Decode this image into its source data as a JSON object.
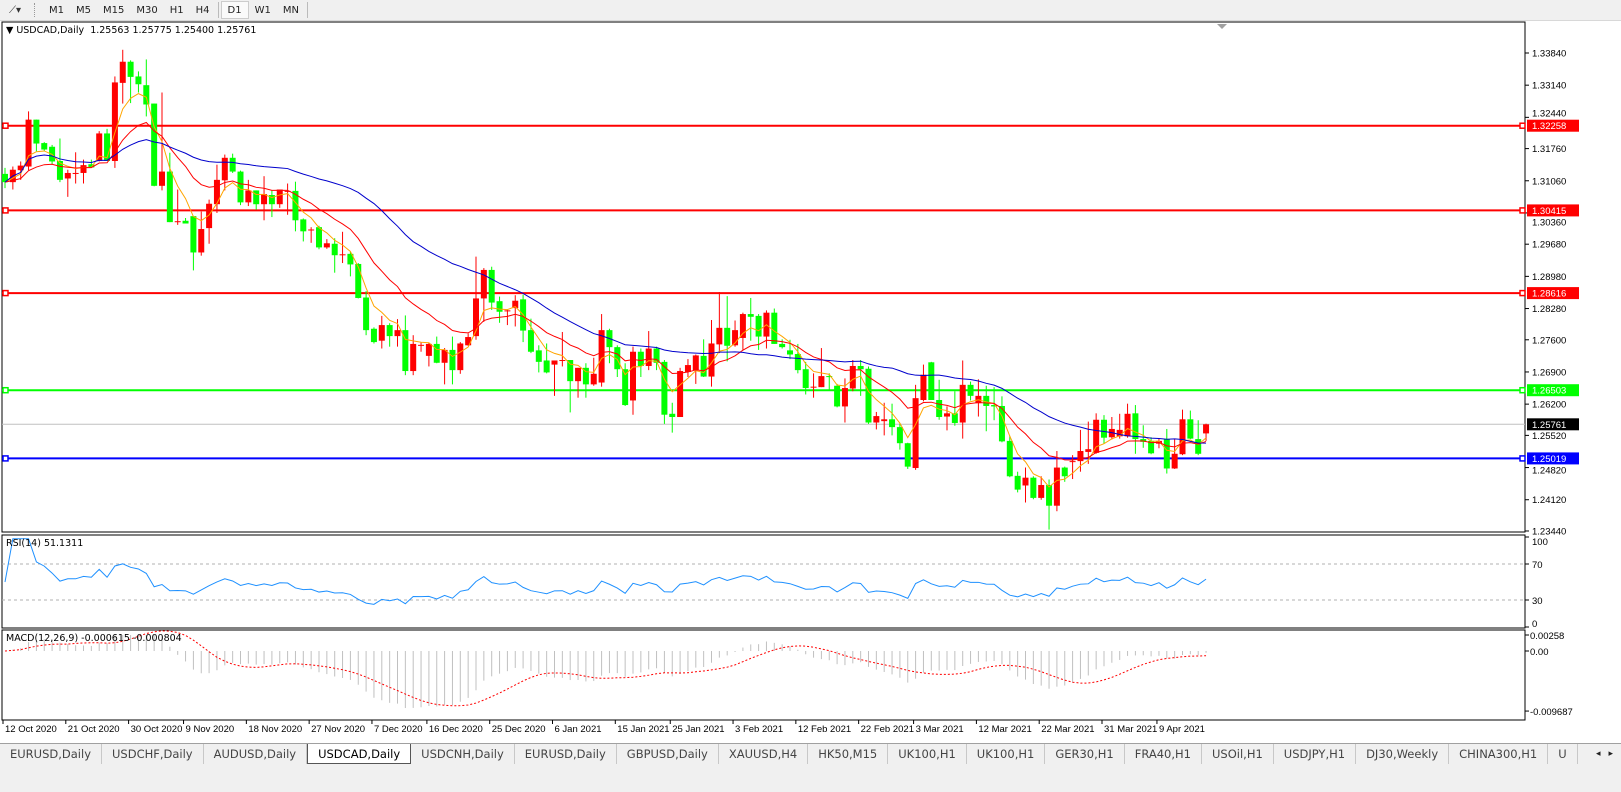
{
  "toolbar": {
    "tools_icon": "line-tools-icon",
    "dropdown_icon": "chevron-down-icon",
    "timeframes": [
      "M1",
      "M5",
      "M15",
      "M30",
      "H1",
      "H4",
      "D1",
      "W1",
      "MN"
    ],
    "active_timeframe": "D1"
  },
  "chart_data": [
    {
      "type": "candlestick",
      "title": "USDCAD,Daily",
      "ohlc_readout": "1.25563 1.25775 1.25400 1.25761",
      "bull_color": "#ff0000",
      "bear_color": "#00ff00",
      "moving_average_colors": [
        "#ffa500",
        "#ff0000",
        "#0000cc"
      ],
      "x_tick_labels": [
        "12 Oct 2020",
        "21 Oct 2020",
        "30 Oct 2020",
        "9 Nov 2020",
        "18 Nov 2020",
        "27 Nov 2020",
        "7 Dec 2020",
        "16 Dec 2020",
        "25 Dec 2020",
        "6 Jan 2021",
        "15 Jan 2021",
        "25 Jan 2021",
        "3 Feb 2021",
        "12 Feb 2021",
        "22 Feb 2021",
        "3 Mar 2021",
        "12 Mar 2021",
        "22 Mar 2021",
        "31 Mar 2021",
        "9 Apr 2021"
      ],
      "y_tick_labels": [
        "1.33840",
        "1.33140",
        "1.32440",
        "1.31760",
        "1.31060",
        "1.30360",
        "1.29680",
        "1.28980",
        "1.28280",
        "1.27600",
        "1.26900",
        "1.26200",
        "1.25520",
        "1.24820",
        "1.24120",
        "1.23440"
      ],
      "ylim": [
        1.2344,
        1.3384
      ],
      "horizontal_lines": [
        {
          "label": "1.32258",
          "color": "#ff0000"
        },
        {
          "label": "1.30415",
          "color": "#ff0000"
        },
        {
          "label": "1.28616",
          "color": "#ff0000"
        },
        {
          "label": "1.26503",
          "color": "#00ff00"
        },
        {
          "label": "1.25019",
          "color": "#0000ff"
        }
      ],
      "current_price": {
        "label": "1.25761",
        "line_color": "#c0c0c0",
        "label_bg": "#000000"
      },
      "candles_ohlc": [
        [
          1.3121,
          1.3134,
          1.309,
          1.3103
        ],
        [
          1.3103,
          1.3137,
          1.3087,
          1.313
        ],
        [
          1.3129,
          1.3148,
          1.3108,
          1.3139
        ],
        [
          1.3137,
          1.3257,
          1.3129,
          1.3239
        ],
        [
          1.3239,
          1.3239,
          1.317,
          1.3187
        ],
        [
          1.3188,
          1.319,
          1.317,
          1.3174
        ],
        [
          1.318,
          1.3184,
          1.3141,
          1.3148
        ],
        [
          1.3149,
          1.3198,
          1.3103,
          1.3108
        ],
        [
          1.3111,
          1.313,
          1.3071,
          1.3123
        ],
        [
          1.3122,
          1.3168,
          1.31,
          1.3123
        ],
        [
          1.3123,
          1.3152,
          1.31,
          1.314
        ],
        [
          1.3142,
          1.3152,
          1.3135,
          1.3135
        ],
        [
          1.3149,
          1.3214,
          1.3148,
          1.3209
        ],
        [
          1.3209,
          1.3219,
          1.3149,
          1.3149
        ],
        [
          1.3149,
          1.3333,
          1.3134,
          1.332
        ],
        [
          1.3319,
          1.3391,
          1.3274,
          1.3365
        ],
        [
          1.3365,
          1.3368,
          1.3275,
          1.3332
        ],
        [
          1.3333,
          1.3344,
          1.3298,
          1.3316
        ],
        [
          1.3314,
          1.337,
          1.3246,
          1.3272
        ],
        [
          1.3274,
          1.3274,
          1.3094,
          1.3095
        ],
        [
          1.3095,
          1.3298,
          1.3085,
          1.3126
        ],
        [
          1.3126,
          1.3167,
          1.3016,
          1.3016
        ],
        [
          1.3017,
          1.3087,
          1.301,
          1.3018
        ],
        [
          1.3019,
          1.3025,
          1.3013,
          1.3013
        ],
        [
          1.3029,
          1.3029,
          1.2911,
          1.295
        ],
        [
          1.295,
          1.3039,
          1.2943,
          1.3001
        ],
        [
          1.3003,
          1.3065,
          1.2969,
          1.3056
        ],
        [
          1.3055,
          1.3141,
          1.3036,
          1.3108
        ],
        [
          1.3107,
          1.3163,
          1.3085,
          1.3156
        ],
        [
          1.3156,
          1.3165,
          1.3123,
          1.3126
        ],
        [
          1.3126,
          1.3128,
          1.3053,
          1.3059
        ],
        [
          1.3059,
          1.3108,
          1.3051,
          1.3085
        ],
        [
          1.3085,
          1.3085,
          1.3043,
          1.3055
        ],
        [
          1.3055,
          1.3116,
          1.302,
          1.3077
        ],
        [
          1.3075,
          1.3085,
          1.3027,
          1.3055
        ],
        [
          1.3055,
          1.3087,
          1.3047,
          1.3087
        ],
        [
          1.3082,
          1.31,
          1.3032,
          1.3084
        ],
        [
          1.3084,
          1.3104,
          1.2996,
          1.302
        ],
        [
          1.3022,
          1.3024,
          1.2974,
          1.2996
        ],
        [
          1.2998,
          1.3005,
          1.2971,
          1.3
        ],
        [
          1.3005,
          1.3008,
          1.2957,
          1.2961
        ],
        [
          1.2961,
          1.2979,
          1.2958,
          1.297
        ],
        [
          1.2969,
          1.2981,
          1.2906,
          1.2944
        ],
        [
          1.2945,
          1.2995,
          1.2927,
          1.2946
        ],
        [
          1.2947,
          1.2951,
          1.2898,
          1.2924
        ],
        [
          1.2925,
          1.2927,
          1.285,
          1.2851
        ],
        [
          1.2852,
          1.2866,
          1.277,
          1.2781
        ],
        [
          1.2784,
          1.2787,
          1.2752,
          1.2755
        ],
        [
          1.2758,
          1.2812,
          1.2741,
          1.2792
        ],
        [
          1.2792,
          1.2796,
          1.2745,
          1.2768
        ],
        [
          1.2768,
          1.2805,
          1.2745,
          1.2781
        ],
        [
          1.2781,
          1.2813,
          1.2683,
          1.2692
        ],
        [
          1.2692,
          1.277,
          1.2683,
          1.2751
        ],
        [
          1.2749,
          1.2754,
          1.2734,
          1.2749
        ],
        [
          1.2725,
          1.2754,
          1.2702,
          1.2751
        ],
        [
          1.2751,
          1.2767,
          1.2709,
          1.271
        ],
        [
          1.271,
          1.2742,
          1.2663,
          1.2738
        ],
        [
          1.2738,
          1.2767,
          1.2663,
          1.2694
        ],
        [
          1.2694,
          1.2755,
          1.2686,
          1.2752
        ],
        [
          1.2748,
          1.2774,
          1.2747,
          1.2766
        ],
        [
          1.2768,
          1.2941,
          1.276,
          1.285
        ],
        [
          1.285,
          1.2916,
          1.2799,
          1.2912
        ],
        [
          1.2912,
          1.2919,
          1.2825,
          1.2841
        ],
        [
          1.2844,
          1.2854,
          1.2797,
          1.2821
        ],
        [
          1.2823,
          1.2826,
          1.2792,
          1.2824
        ],
        [
          1.2829,
          1.2857,
          1.2789,
          1.2845
        ],
        [
          1.2848,
          1.2858,
          1.2755,
          1.278
        ],
        [
          1.2781,
          1.2806,
          1.2731,
          1.2734
        ],
        [
          1.2737,
          1.2748,
          1.2689,
          1.2712
        ],
        [
          1.2715,
          1.2752,
          1.2687,
          1.2689
        ],
        [
          1.2706,
          1.2715,
          1.2638,
          1.2715
        ],
        [
          1.2715,
          1.2777,
          1.2702,
          1.2716
        ],
        [
          1.2716,
          1.2716,
          1.2602,
          1.267
        ],
        [
          1.267,
          1.2699,
          1.2634,
          1.2699
        ],
        [
          1.2699,
          1.2709,
          1.2634,
          1.2663
        ],
        [
          1.2663,
          1.2721,
          1.266,
          1.2686
        ],
        [
          1.2667,
          1.2816,
          1.2658,
          1.2781
        ],
        [
          1.2781,
          1.2784,
          1.2709,
          1.2744
        ],
        [
          1.2744,
          1.2748,
          1.2679,
          1.2696
        ],
        [
          1.2696,
          1.2709,
          1.2616,
          1.2618
        ],
        [
          1.2628,
          1.2745,
          1.2597,
          1.2734
        ],
        [
          1.2734,
          1.2741,
          1.2679,
          1.2703
        ],
        [
          1.2703,
          1.2779,
          1.2694,
          1.2741
        ],
        [
          1.2741,
          1.2745,
          1.2694,
          1.271
        ],
        [
          1.2712,
          1.2716,
          1.2577,
          1.2597
        ],
        [
          1.2599,
          1.2623,
          1.2558,
          1.2592
        ],
        [
          1.2592,
          1.2699,
          1.2592,
          1.2692
        ],
        [
          1.269,
          1.2718,
          1.2679,
          1.2705
        ],
        [
          1.2694,
          1.2728,
          1.2664,
          1.2726
        ],
        [
          1.2725,
          1.2761,
          1.2679,
          1.268
        ],
        [
          1.268,
          1.2803,
          1.2658,
          1.2752
        ],
        [
          1.275,
          1.2864,
          1.2731,
          1.2786
        ],
        [
          1.2786,
          1.2855,
          1.2713,
          1.2747
        ],
        [
          1.2748,
          1.2802,
          1.2745,
          1.2781
        ],
        [
          1.2764,
          1.2819,
          1.2738,
          1.2816
        ],
        [
          1.2816,
          1.2851,
          1.2758,
          1.281
        ],
        [
          1.2812,
          1.2816,
          1.2738,
          1.2767
        ],
        [
          1.2767,
          1.2824,
          1.2741,
          1.2819
        ],
        [
          1.2819,
          1.2828,
          1.2751,
          1.2751
        ],
        [
          1.2751,
          1.2761,
          1.2741,
          1.2744
        ],
        [
          1.2737,
          1.276,
          1.2718,
          1.2728
        ],
        [
          1.2729,
          1.2751,
          1.2687,
          1.2694
        ],
        [
          1.2696,
          1.2712,
          1.2641,
          1.2655
        ],
        [
          1.2657,
          1.2687,
          1.2634,
          1.2658
        ],
        [
          1.2657,
          1.2742,
          1.2657,
          1.2681
        ],
        [
          1.2681,
          1.2687,
          1.2651,
          1.2679
        ],
        [
          1.266,
          1.2664,
          1.2613,
          1.2615
        ],
        [
          1.2615,
          1.2676,
          1.258,
          1.2655
        ],
        [
          1.2654,
          1.2716,
          1.2648,
          1.2703
        ],
        [
          1.2703,
          1.2716,
          1.2638,
          1.2696
        ],
        [
          1.2697,
          1.2702,
          1.2577,
          1.258
        ],
        [
          1.258,
          1.2603,
          1.2565,
          1.2594
        ],
        [
          1.2583,
          1.2623,
          1.2552,
          1.2587
        ],
        [
          1.2587,
          1.2621,
          1.2552,
          1.257
        ],
        [
          1.257,
          1.2579,
          1.2521,
          1.2535
        ],
        [
          1.2535,
          1.2536,
          1.2479,
          1.2484
        ],
        [
          1.2481,
          1.2662,
          1.2477,
          1.2633
        ],
        [
          1.2629,
          1.2706,
          1.2626,
          1.2684
        ],
        [
          1.2711,
          1.2712,
          1.2629,
          1.2629
        ],
        [
          1.2629,
          1.2673,
          1.2586,
          1.2592
        ],
        [
          1.2593,
          1.2615,
          1.2563,
          1.26
        ],
        [
          1.26,
          1.2648,
          1.2573,
          1.2579
        ],
        [
          1.258,
          1.2715,
          1.2545,
          1.2662
        ],
        [
          1.2662,
          1.2669,
          1.2628,
          1.2638
        ],
        [
          1.2622,
          1.2674,
          1.2593,
          1.2638
        ],
        [
          1.2638,
          1.266,
          1.2561,
          1.2616
        ],
        [
          1.2618,
          1.2657,
          1.2585,
          1.2615
        ],
        [
          1.2616,
          1.2637,
          1.2537,
          1.2539
        ],
        [
          1.254,
          1.2551,
          1.2461,
          1.2463
        ],
        [
          1.2464,
          1.2473,
          1.2428,
          1.2434
        ],
        [
          1.2443,
          1.2482,
          1.2406,
          1.246
        ],
        [
          1.246,
          1.2463,
          1.2413,
          1.2416
        ],
        [
          1.2416,
          1.2463,
          1.2412,
          1.2444
        ],
        [
          1.2444,
          1.2456,
          1.2347,
          1.2399
        ],
        [
          1.2399,
          1.2518,
          1.2387,
          1.2482
        ],
        [
          1.2482,
          1.2484,
          1.2451,
          1.2463
        ],
        [
          1.2494,
          1.2509,
          1.2457,
          1.2496
        ],
        [
          1.2496,
          1.2564,
          1.2473,
          1.2518
        ],
        [
          1.2516,
          1.2582,
          1.249,
          1.2522
        ],
        [
          1.2514,
          1.26,
          1.2512,
          1.2586
        ],
        [
          1.2586,
          1.2596,
          1.2534,
          1.2547
        ],
        [
          1.2548,
          1.2592,
          1.2543,
          1.2566
        ],
        [
          1.255,
          1.2599,
          1.2545,
          1.2564
        ],
        [
          1.255,
          1.2621,
          1.2547,
          1.2599
        ],
        [
          1.26,
          1.2618,
          1.2512,
          1.2544
        ],
        [
          1.2544,
          1.2574,
          1.2525,
          1.2538
        ],
        [
          1.254,
          1.2548,
          1.2511,
          1.2513
        ],
        [
          1.2534,
          1.2545,
          1.2524,
          1.254
        ],
        [
          1.2544,
          1.2566,
          1.2469,
          1.248
        ],
        [
          1.248,
          1.2545,
          1.2479,
          1.2512
        ],
        [
          1.2511,
          1.2608,
          1.2509,
          1.2587
        ],
        [
          1.2587,
          1.2606,
          1.2544,
          1.2545
        ],
        [
          1.2544,
          1.2585,
          1.2509,
          1.2512
        ],
        [
          1.25563,
          1.25775,
          1.254,
          1.25761
        ]
      ]
    },
    {
      "type": "line",
      "title": "RSI(14) 51.1311",
      "line_color": "#1e90ff",
      "y_tick_labels": [
        "100",
        "70",
        "30",
        "0"
      ],
      "ylim": [
        0,
        100
      ],
      "levels": [
        70,
        30
      ]
    },
    {
      "type": "bar",
      "title": "MACD(12,26,9) -0.000615 -0.000804",
      "histogram_color": "#c0c0c0",
      "signal_color": "#ff0000",
      "y_tick_labels": [
        "0.00258",
        "0.00",
        "-0.009687"
      ],
      "ylim": [
        -0.009687,
        0.00258
      ]
    }
  ],
  "tabs": {
    "items": [
      "EURUSD,Daily",
      "USDCHF,Daily",
      "AUDUSD,Daily",
      "USDCAD,Daily",
      "USDCNH,Daily",
      "EURUSD,Daily",
      "GBPUSD,Daily",
      "XAUUSD,H4",
      "HK50,M15",
      "UK100,H1",
      "UK100,H1",
      "GER30,H1",
      "FRA40,H1",
      "USOil,H1",
      "USDJPY,H1",
      "DJ30,Weekly",
      "CHINA300,H1",
      "U"
    ],
    "active": "USDCAD,Daily",
    "scroll_left_icon": "◂",
    "scroll_right_icon": "▸"
  }
}
